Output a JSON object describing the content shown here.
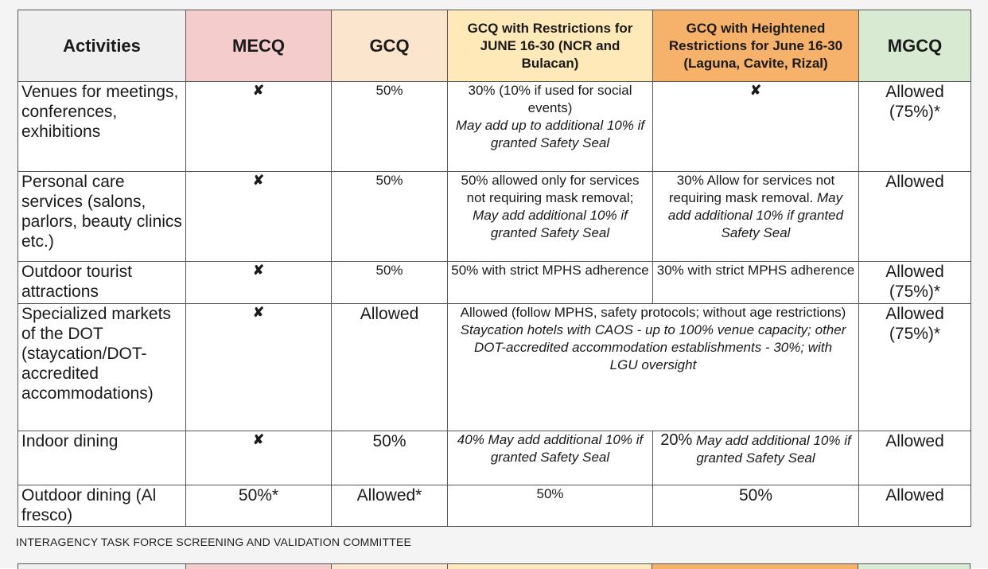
{
  "headers": {
    "activities": "Activities",
    "mecq": "MECQ",
    "gcq": "GCQ",
    "gcq_restrictions": "GCQ with Restrictions for JUNE 16-30 (NCR and Bulacan)",
    "gcq_heightened": "GCQ with Heightened Restrictions for June 16-30 (Laguna, Cavite, Rizal)",
    "mgcq": "MGCQ"
  },
  "rows": [
    {
      "activity": "Venues for meetings, conferences, exhibitions",
      "mecq": "✘",
      "gcq": "50%",
      "gcqr_text": "30% (10% if used for social events)",
      "gcqr_italic": "May add up to additional 10% if granted Safety Seal",
      "gcqh_text": "✘",
      "gcqh_italic": "",
      "mgcq": "Allowed (75%)*"
    },
    {
      "activity": "Personal care services (salons, parlors, beauty clinics etc.)",
      "mecq": "✘",
      "gcq": "50%",
      "gcqr_text": "50% allowed only for services not requiring mask removal;",
      "gcqr_italic": "May add additional 10% if granted Safety Seal",
      "gcqh_text": "30% Allow for services not requiring mask removal.",
      "gcqh_italic": "May add additional 10% if granted Safety Seal",
      "mgcq": "Allowed"
    },
    {
      "activity": "Outdoor tourist attractions",
      "mecq": "✘",
      "gcq": "50%",
      "gcqr_text": "50% with strict MPHS adherence",
      "gcqr_italic": "",
      "gcqh_text": "30% with strict MPHS adherence",
      "gcqh_italic": "",
      "mgcq": "Allowed (75%)*"
    },
    {
      "activity": "Specialized markets of the DOT (staycation/DOT-accredited accommodations)",
      "mecq": "✘",
      "gcq": "Allowed",
      "merged_text": "Allowed (follow MPHS, safety protocols; without age restrictions)",
      "merged_italic": "Staycation hotels with CAOS - up to 100% venue capacity; other DOT-accredited accommodation establishments - 30%; with LGU oversight",
      "mgcq": "Allowed (75%)*"
    },
    {
      "activity": "Indoor dining",
      "mecq": "✘",
      "gcq": "50%",
      "gcqr_text": "",
      "gcqr_italic": "40% May add additional 10% if granted Safety Seal",
      "gcqh_text": "20%",
      "gcqh_italic": "May add additional 10% if granted Safety Seal",
      "mgcq": "Allowed"
    },
    {
      "activity": "Outdoor dining (Al fresco)",
      "mecq": "50%*",
      "gcq": "Allowed*",
      "gcqr_text": "50%",
      "gcqr_italic": "",
      "gcqh_text": "50%",
      "gcqh_italic": "",
      "mgcq": "Allowed"
    }
  ],
  "footer": "INTERAGENCY TASK FORCE SCREENING AND VALIDATION COMMITTEE",
  "colors": {
    "activities_header": "#efefef",
    "mecq_header": "#f4cccc",
    "gcq_header": "#fce5cd",
    "gcq_restrictions_header": "#ffe9b8",
    "gcq_heightened_header": "#f6b26b",
    "mgcq_header": "#d9ead3"
  }
}
